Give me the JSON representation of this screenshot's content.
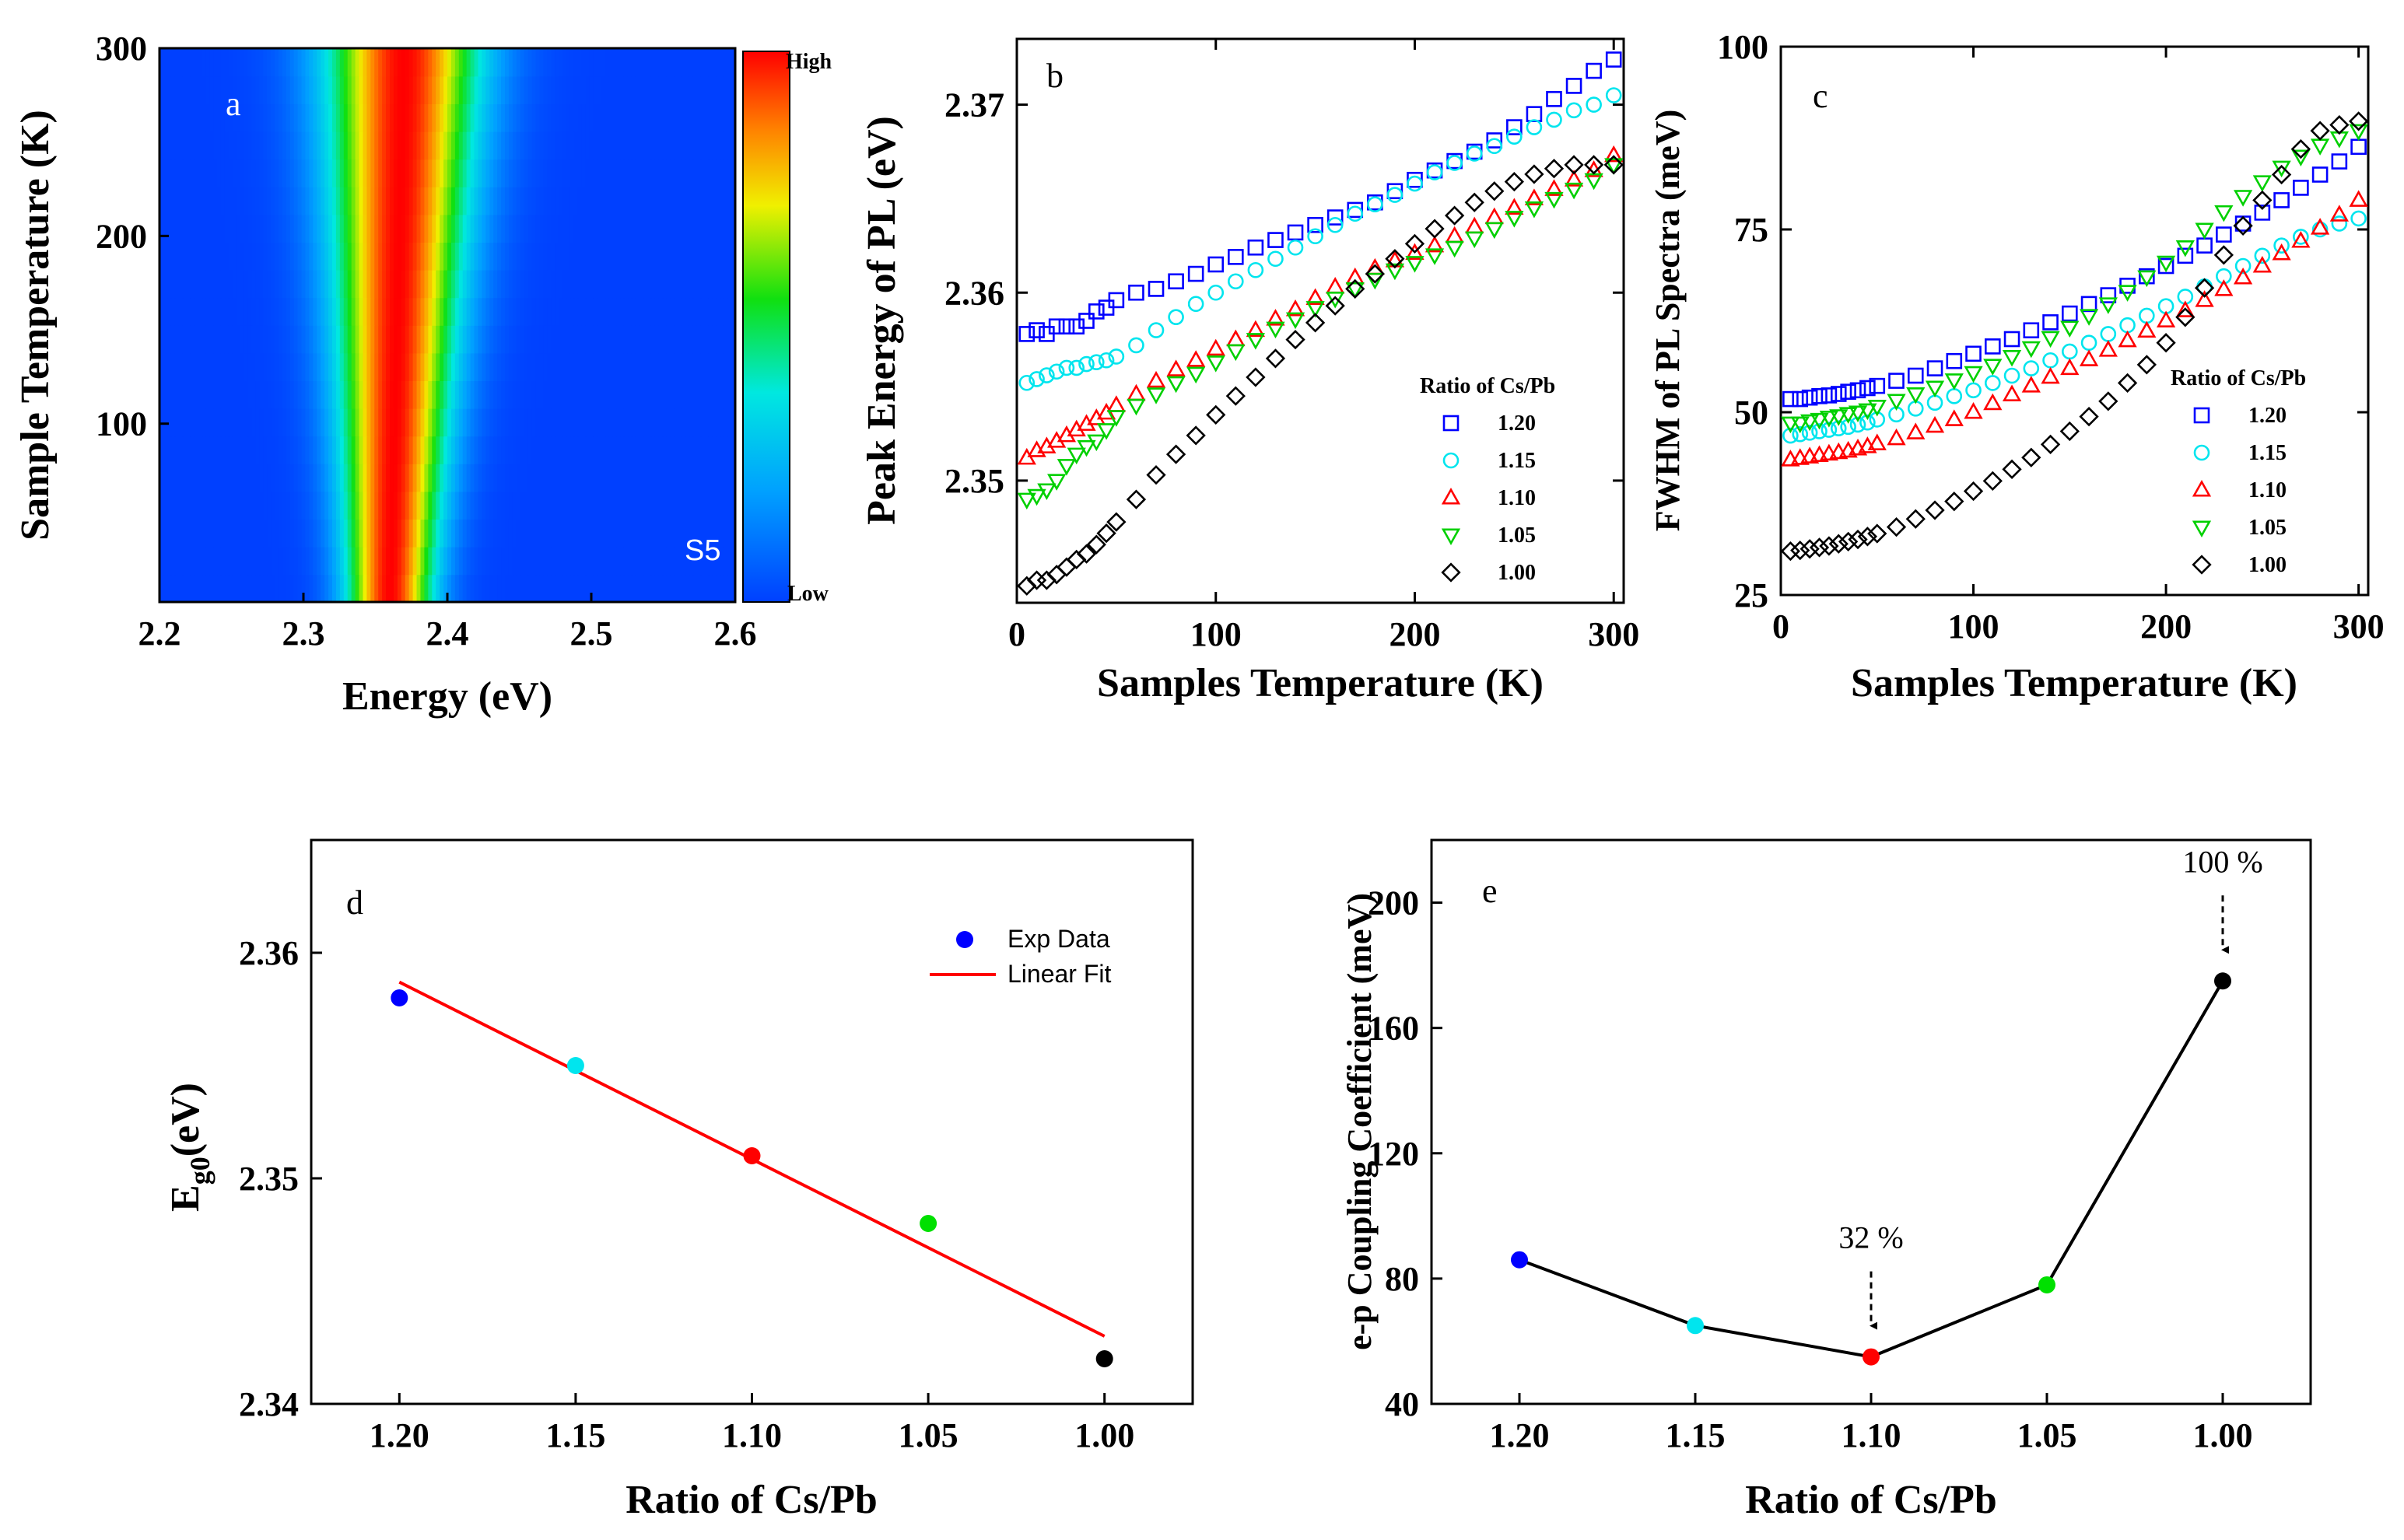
{
  "chart_data": [
    {
      "panel": "a",
      "type": "heatmap",
      "xlabel": "Energy (eV)",
      "ylabel": "Sample Temperature (K)",
      "xlim": [
        2.2,
        2.6
      ],
      "ylim": [
        5,
        300
      ],
      "xticks": [
        "2.2",
        "2.3",
        "2.4",
        "2.5",
        "2.6"
      ],
      "yticks": [
        "100",
        "200",
        "300"
      ],
      "ytick_values": [
        100,
        200,
        300
      ],
      "xtick_values": [
        2.2,
        2.3,
        2.4,
        2.5,
        2.6
      ],
      "colorbar": {
        "high": "High",
        "low": "Low"
      },
      "sample_label": "S5",
      "peak_center_eV": {
        "low_T": 2.36,
        "high_T": 2.37
      },
      "peak_width_eV": {
        "low_T": 0.05,
        "high_T": 0.09
      }
    },
    {
      "panel": "b",
      "type": "scatter",
      "xlabel": "Samples Temperature (K)",
      "ylabel": "Peak Energy of PL (eV)",
      "xlim": [
        0,
        305
      ],
      "ylim": [
        2.3435,
        2.3735
      ],
      "xticks": [
        "0",
        "100",
        "200",
        "300"
      ],
      "xtick_values": [
        0,
        100,
        200,
        300
      ],
      "yticks": [
        "2.35",
        "2.36",
        "2.37"
      ],
      "ytick_values": [
        2.35,
        2.36,
        2.37
      ],
      "legend_title": "Ratio of Cs/Pb",
      "x": [
        5,
        10,
        15,
        20,
        25,
        30,
        35,
        40,
        45,
        50,
        60,
        70,
        80,
        90,
        100,
        110,
        120,
        130,
        140,
        150,
        160,
        170,
        180,
        190,
        200,
        210,
        220,
        230,
        240,
        250,
        260,
        270,
        280,
        290,
        300
      ],
      "series": [
        {
          "name": "1.20",
          "color": "#0000ff",
          "marker": "square",
          "values": [
            2.3578,
            2.358,
            2.3578,
            2.3582,
            2.3582,
            2.3582,
            2.3585,
            2.359,
            2.3592,
            2.3596,
            2.36,
            2.3602,
            2.3606,
            2.361,
            2.3615,
            2.3619,
            2.3624,
            2.3628,
            2.3632,
            2.3636,
            2.364,
            2.3644,
            2.3648,
            2.3654,
            2.366,
            2.3665,
            2.367,
            2.3675,
            2.3681,
            2.3688,
            2.3695,
            2.3703,
            2.371,
            2.3718,
            2.3724
          ]
        },
        {
          "name": "1.15",
          "color": "#00e5ee",
          "marker": "circle",
          "values": [
            2.3552,
            2.3554,
            2.3556,
            2.3558,
            2.356,
            2.356,
            2.3562,
            2.3563,
            2.3564,
            2.3566,
            2.3572,
            2.358,
            2.3587,
            2.3594,
            2.36,
            2.3606,
            2.3612,
            2.3618,
            2.3624,
            2.363,
            2.3636,
            2.3642,
            2.3647,
            2.3652,
            2.3658,
            2.3664,
            2.3669,
            2.3674,
            2.3678,
            2.3683,
            2.3688,
            2.3692,
            2.3697,
            2.37,
            2.3705
          ]
        },
        {
          "name": "1.10",
          "color": "#ff0000",
          "marker": "triangle-up",
          "values": [
            2.3512,
            2.3516,
            2.3518,
            2.3521,
            2.3524,
            2.3527,
            2.353,
            2.3533,
            2.3536,
            2.354,
            2.3546,
            2.3553,
            2.3559,
            2.3564,
            2.357,
            2.3575,
            2.358,
            2.3586,
            2.3591,
            2.3597,
            2.3603,
            2.3608,
            2.3613,
            2.3617,
            2.3621,
            2.3625,
            2.363,
            2.3635,
            2.364,
            2.3645,
            2.365,
            2.3655,
            2.366,
            2.3665,
            2.3673
          ]
        },
        {
          "name": "1.05",
          "color": "#00d000",
          "marker": "triangle-down",
          "values": [
            2.349,
            2.3492,
            2.3495,
            2.35,
            2.3508,
            2.3514,
            2.3518,
            2.3521,
            2.3527,
            2.3534,
            2.354,
            2.3546,
            2.3552,
            2.3557,
            2.3563,
            2.3569,
            2.3575,
            2.3581,
            2.3586,
            2.3592,
            2.3597,
            2.3602,
            2.3607,
            2.3612,
            2.3616,
            2.362,
            2.3624,
            2.3629,
            2.3634,
            2.364,
            2.3645,
            2.365,
            2.3655,
            2.366,
            2.3668
          ]
        },
        {
          "name": "1.00",
          "color": "#000000",
          "marker": "diamond",
          "values": [
            2.3444,
            2.3447,
            2.3447,
            2.345,
            2.3454,
            2.3458,
            2.3461,
            2.3466,
            2.3472,
            2.3478,
            2.349,
            2.3503,
            2.3514,
            2.3524,
            2.3535,
            2.3545,
            2.3555,
            2.3565,
            2.3575,
            2.3584,
            2.3593,
            2.3602,
            2.361,
            2.3618,
            2.3626,
            2.3634,
            2.3641,
            2.3648,
            2.3654,
            2.3659,
            2.3663,
            2.3666,
            2.3668,
            2.3668,
            2.3668
          ]
        }
      ]
    },
    {
      "panel": "c",
      "type": "scatter",
      "xlabel": "Samples Temperature (K)",
      "ylabel": "FWHM of PL Spectra (meV)",
      "xlim": [
        0,
        305
      ],
      "ylim": [
        25,
        100
      ],
      "xticks": [
        "0",
        "100",
        "200",
        "300"
      ],
      "xtick_values": [
        0,
        100,
        200,
        300
      ],
      "yticks": [
        "25",
        "50",
        "75",
        "100"
      ],
      "ytick_values": [
        25,
        50,
        75,
        100
      ],
      "legend_title": "Ratio of Cs/Pb",
      "x": [
        5,
        10,
        15,
        20,
        25,
        30,
        35,
        40,
        45,
        50,
        60,
        70,
        80,
        90,
        100,
        110,
        120,
        130,
        140,
        150,
        160,
        170,
        180,
        190,
        200,
        210,
        220,
        230,
        240,
        250,
        260,
        270,
        280,
        290,
        300
      ],
      "series": [
        {
          "name": "1.20",
          "color": "#0000ff",
          "marker": "square",
          "values": [
            51.8,
            51.8,
            52.0,
            52.2,
            52.3,
            52.5,
            52.8,
            53.0,
            53.3,
            53.6,
            54.3,
            55.0,
            56.0,
            57.0,
            58.0,
            59.0,
            60.0,
            61.2,
            62.3,
            63.5,
            64.8,
            66.0,
            67.3,
            68.6,
            70.0,
            71.4,
            72.8,
            74.3,
            75.8,
            77.3,
            79.0,
            80.7,
            82.5,
            84.3,
            86.3
          ]
        },
        {
          "name": "1.15",
          "color": "#00e5ee",
          "marker": "circle",
          "values": [
            46.8,
            47.0,
            47.2,
            47.4,
            47.6,
            47.8,
            48.0,
            48.3,
            48.6,
            49.0,
            49.7,
            50.5,
            51.3,
            52.2,
            53.0,
            54.0,
            55.0,
            56.0,
            57.1,
            58.3,
            59.5,
            60.7,
            61.9,
            63.2,
            64.5,
            65.8,
            67.2,
            68.6,
            70.0,
            71.4,
            72.8,
            74.0,
            75.0,
            75.8,
            76.5
          ]
        },
        {
          "name": "1.10",
          "color": "#ff0000",
          "marker": "triangle-up",
          "values": [
            43.5,
            43.7,
            43.9,
            44.1,
            44.3,
            44.5,
            44.7,
            45.0,
            45.3,
            45.7,
            46.4,
            47.2,
            48.1,
            49.0,
            50.0,
            51.2,
            52.4,
            53.6,
            54.8,
            56.0,
            57.2,
            58.5,
            59.8,
            61.1,
            62.5,
            63.9,
            65.3,
            66.8,
            68.4,
            70.0,
            71.7,
            73.4,
            75.2,
            77.0,
            79.0
          ]
        },
        {
          "name": "1.05",
          "color": "#00d000",
          "marker": "triangle-down",
          "values": [
            48.5,
            48.5,
            48.8,
            49.0,
            49.3,
            49.5,
            49.8,
            50.0,
            50.3,
            50.8,
            51.6,
            52.5,
            53.4,
            54.4,
            55.4,
            56.4,
            57.6,
            58.8,
            60.2,
            61.6,
            63.2,
            64.8,
            66.5,
            68.5,
            70.5,
            72.6,
            75.0,
            77.4,
            79.5,
            81.5,
            83.5,
            85.0,
            86.5,
            87.5,
            88.5
          ]
        },
        {
          "name": "1.00",
          "color": "#000000",
          "marker": "diamond",
          "values": [
            31.0,
            31.1,
            31.3,
            31.5,
            31.7,
            32.0,
            32.3,
            32.6,
            33.0,
            33.4,
            34.3,
            35.4,
            36.6,
            37.8,
            39.2,
            40.6,
            42.2,
            43.8,
            45.6,
            47.4,
            49.4,
            51.5,
            54.0,
            56.5,
            59.5,
            63.0,
            67.0,
            71.5,
            75.5,
            79.0,
            82.5,
            86.0,
            88.5,
            89.3,
            89.8
          ]
        }
      ]
    },
    {
      "panel": "d",
      "type": "scatter",
      "xlabel": "Ratio of Cs/Pb",
      "ylabel_main": "E",
      "ylabel_sub": "g0",
      "ylabel_tail": "(eV)",
      "xlim": [
        1.225,
        0.975
      ],
      "ylim": [
        2.34,
        2.365
      ],
      "xticks": [
        "1.20",
        "1.15",
        "1.10",
        "1.05",
        "1.00"
      ],
      "xtick_values": [
        1.2,
        1.15,
        1.1,
        1.05,
        1.0
      ],
      "yticks": [
        "2.34",
        "2.35",
        "2.36"
      ],
      "ytick_values": [
        2.34,
        2.35,
        2.36
      ],
      "legend": [
        "Exp Data",
        "Linear Fit"
      ],
      "points": [
        {
          "x": 1.2,
          "y": 2.358,
          "color": "#0000ff"
        },
        {
          "x": 1.15,
          "y": 2.355,
          "color": "#00e5ee"
        },
        {
          "x": 1.1,
          "y": 2.351,
          "color": "#ff0000"
        },
        {
          "x": 1.05,
          "y": 2.348,
          "color": "#00e000"
        },
        {
          "x": 1.0,
          "y": 2.342,
          "color": "#000000"
        }
      ],
      "fit": {
        "x": [
          1.2,
          1.0
        ],
        "y": [
          2.3587,
          2.343
        ],
        "color": "#ff0000"
      }
    },
    {
      "panel": "e",
      "type": "line",
      "xlabel": "Ratio of Cs/Pb",
      "ylabel": "e-p Coupling Coefficient (meV)",
      "xlim": [
        1.225,
        0.975
      ],
      "ylim": [
        40,
        220
      ],
      "xticks": [
        "1.20",
        "1.15",
        "1.10",
        "1.05",
        "1.00"
      ],
      "xtick_values": [
        1.2,
        1.15,
        1.1,
        1.05,
        1.0
      ],
      "yticks": [
        "40",
        "80",
        "120",
        "160",
        "200"
      ],
      "ytick_values": [
        40,
        80,
        120,
        160,
        200
      ],
      "points": [
        {
          "x": 1.2,
          "y": 86,
          "color": "#0000ff"
        },
        {
          "x": 1.15,
          "y": 65,
          "color": "#00e5ee"
        },
        {
          "x": 1.1,
          "y": 55,
          "color": "#ff0000"
        },
        {
          "x": 1.05,
          "y": 78,
          "color": "#00e000"
        },
        {
          "x": 1.0,
          "y": 175,
          "color": "#000000"
        }
      ],
      "annotations": [
        {
          "text": "32 %",
          "x": 1.1,
          "y": 55
        },
        {
          "text": "100 %",
          "x": 1.0,
          "y": 175
        }
      ]
    }
  ]
}
